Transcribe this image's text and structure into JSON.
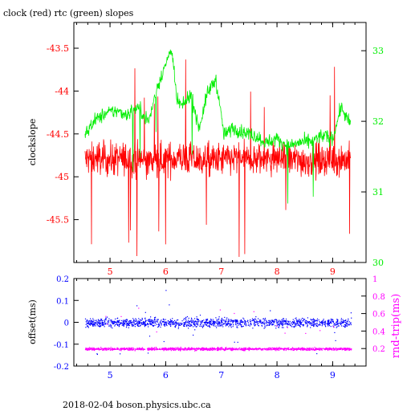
{
  "title": "clock (red) rtc (green) slopes",
  "footer": "2018-02-04  boson.physics.ubc.ca",
  "colors": {
    "axes": "#000000",
    "clock": "#ff0000",
    "rtc": "#00ee00",
    "offset": "#0000ff",
    "roundtrip": "#ff00ff"
  },
  "chart_data": [
    {
      "type": "line",
      "ylabel": "clockslope",
      "y2label": "",
      "xlim": [
        4.35,
        9.6
      ],
      "ylim": [
        -46.0,
        -43.2
      ],
      "y2lim": [
        30.0,
        33.4
      ],
      "xticks": [
        "5",
        "6",
        "7",
        "8",
        "9"
      ],
      "xtick_values": [
        5,
        6,
        7,
        8,
        9
      ],
      "yticks": [
        "-45.5",
        "-45",
        "-44.5",
        "-44",
        "-43.5"
      ],
      "ytick_values": [
        -45.5,
        -45,
        -44.5,
        -44,
        -43.5
      ],
      "y2ticks": [
        "30",
        "31",
        "32",
        "33"
      ],
      "y2tick_values": [
        30,
        31,
        32,
        33
      ],
      "series": [
        {
          "axis": "left",
          "x": [
            4.55,
            4.8,
            5.0,
            5.25,
            5.5,
            5.75,
            6.0,
            6.25,
            6.5,
            6.75,
            7.0,
            7.25,
            7.5,
            7.75,
            8.0,
            8.25,
            8.5,
            8.75,
            9.0,
            9.2,
            9.32
          ],
          "values": [
            -44.8,
            -44.78,
            -44.8,
            -44.79,
            -44.8,
            -44.82,
            -44.8,
            -44.78,
            -44.8,
            -44.81,
            -44.8,
            -44.79,
            -44.8,
            -44.8,
            -44.78,
            -44.8,
            -44.81,
            -44.8,
            -44.79,
            -44.8,
            -44.8
          ],
          "spread": 0.35
        },
        {
          "axis": "right",
          "x": [
            4.55,
            4.7,
            4.9,
            5.1,
            5.3,
            5.5,
            5.7,
            5.85,
            6.0,
            6.1,
            6.2,
            6.3,
            6.45,
            6.6,
            6.75,
            6.9,
            7.05,
            7.2,
            7.4,
            7.6,
            7.8,
            8.0,
            8.2,
            8.4,
            8.6,
            8.8,
            9.0,
            9.15,
            9.25,
            9.32
          ],
          "values": [
            31.8,
            32.0,
            32.1,
            32.15,
            32.1,
            32.2,
            32.0,
            32.5,
            32.8,
            33.05,
            32.3,
            32.2,
            32.4,
            31.9,
            32.4,
            32.6,
            31.8,
            31.9,
            31.85,
            31.8,
            31.7,
            31.75,
            31.65,
            31.7,
            31.7,
            31.8,
            31.75,
            32.2,
            32.05,
            31.95
          ],
          "spread": 0.1
        }
      ]
    },
    {
      "type": "scatter",
      "ylabel": "offset(ms)",
      "y2label": "rnd-trip(ms)",
      "xlim": [
        4.35,
        9.6
      ],
      "ylim": [
        -0.2,
        0.2
      ],
      "y2lim": [
        0.0,
        1.0
      ],
      "xticks": [
        "5",
        "6",
        "7",
        "8",
        "9"
      ],
      "xtick_values": [
        5,
        6,
        7,
        8,
        9
      ],
      "yticks": [
        "-0.2",
        "-0.1",
        "0",
        "0.1",
        "0.2"
      ],
      "ytick_values": [
        -0.2,
        -0.1,
        0,
        0.1,
        0.2
      ],
      "y2ticks": [
        "0.2",
        "0.4",
        "0.6",
        "0.8",
        "1"
      ],
      "y2tick_values": [
        0.2,
        0.4,
        0.6,
        0.8,
        1
      ],
      "series": [
        {
          "axis": "left",
          "x_range": [
            4.55,
            9.33
          ],
          "center": 0.0,
          "spread": 0.02
        },
        {
          "axis": "right",
          "x_range": [
            4.55,
            9.33
          ],
          "center": 0.2,
          "spread": 0.02
        }
      ]
    }
  ]
}
